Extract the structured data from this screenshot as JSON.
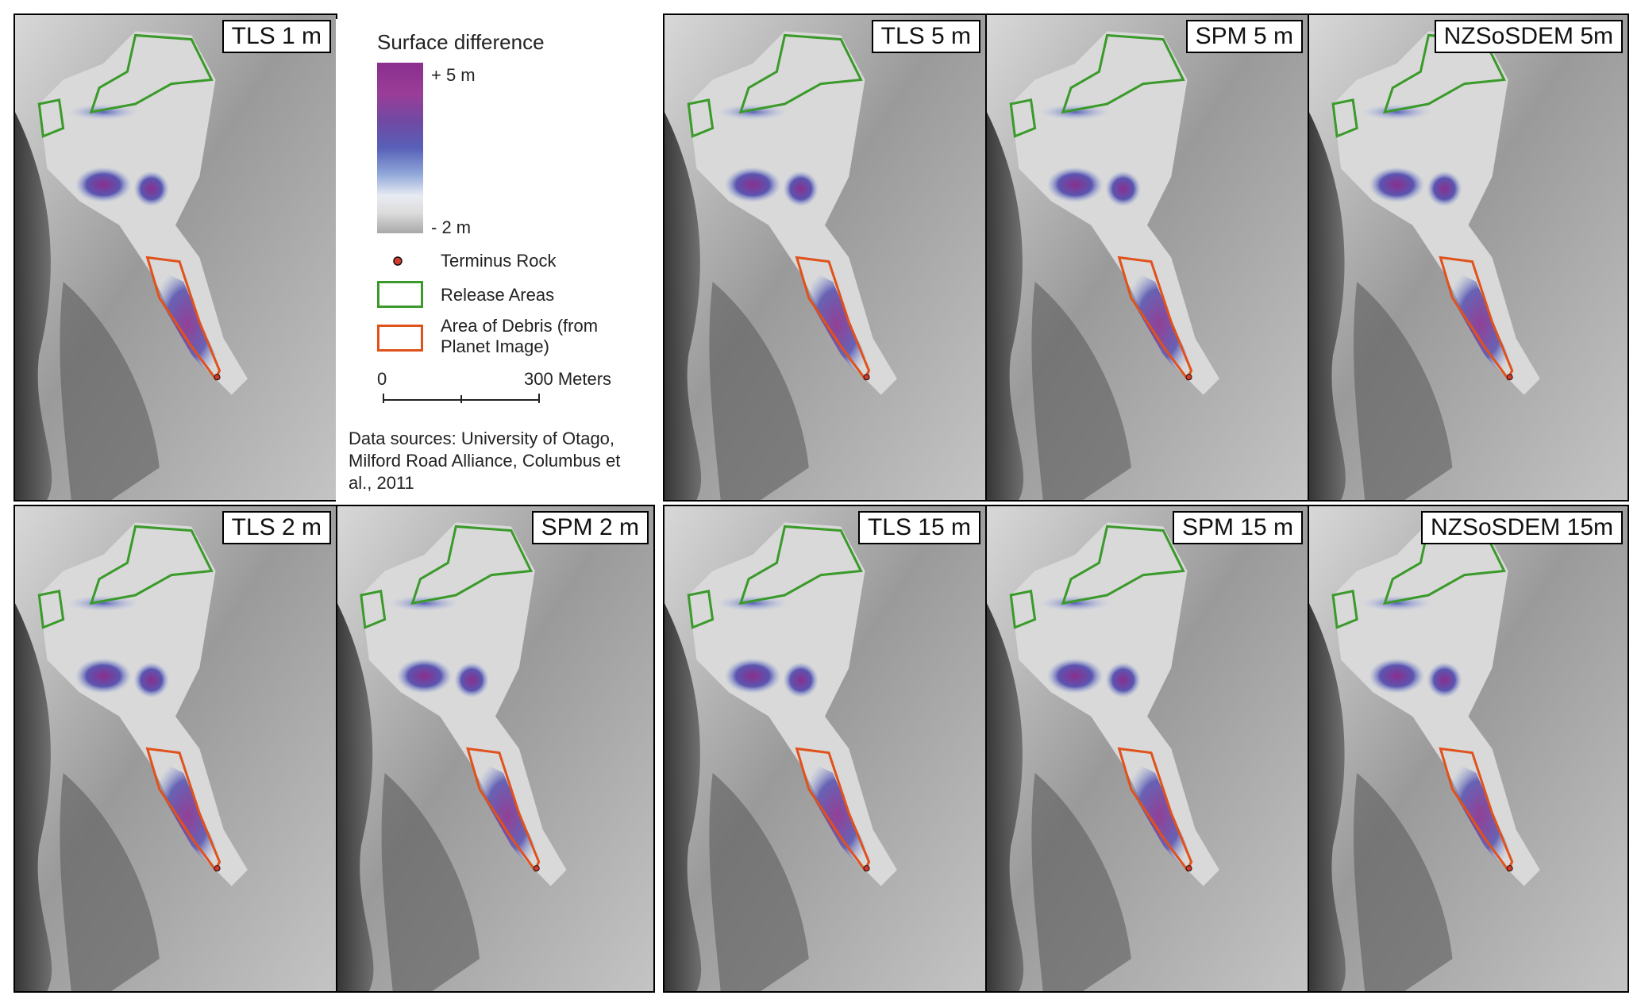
{
  "panels": {
    "tls1": "TLS 1 m",
    "tls2": "TLS 2 m",
    "spm2": "SPM 2 m",
    "tls5": "TLS 5 m",
    "spm5": "SPM 5 m",
    "nz5": "NZSoSDEM 5m",
    "tls15": "TLS 15 m",
    "spm15": "SPM 15 m",
    "nz15": "NZSoSDEM 15m"
  },
  "legend": {
    "title": "Surface difference",
    "max_label": "+ 5 m",
    "min_label": "- 2 m",
    "terminus": "Terminus Rock",
    "release": "Release Areas",
    "debris_1": "Area of Debris (from",
    "debris_2": "Planet Image)",
    "scale_start": "0",
    "scale_end": "300 Meters",
    "sources_1": "Data sources: University of Otago,",
    "sources_2": "Milford Road Alliance, Columbus et",
    "sources_3": "al., 2011"
  },
  "colors": {
    "release": "#3a9a2a",
    "debris": "#e0521c",
    "terminus": "#d23a2a",
    "high": "#8a2f8e",
    "mid": "#5860b8",
    "low": "#a8a8a8"
  }
}
